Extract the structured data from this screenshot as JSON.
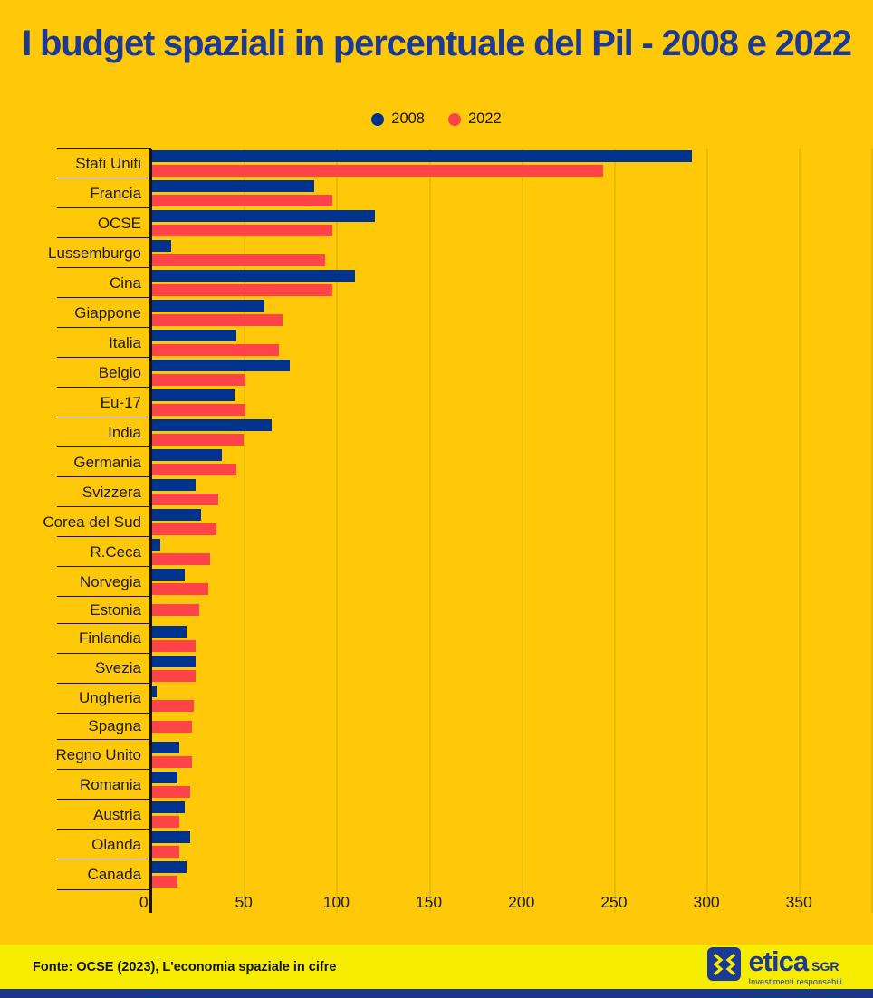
{
  "title": "I budget spaziali in percentuale del Pil - 2008 e 2022",
  "colors": {
    "background": "#FFC90A",
    "footer_background": "#F6EC00",
    "bottom_strip": "#1B3687",
    "title_text": "#1C3A94",
    "bar_2008": "#00338D",
    "bar_2022": "#FF4449",
    "gridline": "#E9BB00",
    "axis_text": "#1D1D1D"
  },
  "legend": {
    "items": [
      {
        "label": "2008",
        "color": "#00338D"
      },
      {
        "label": "2022",
        "color": "#FF4449"
      }
    ]
  },
  "chart_data": {
    "type": "bar",
    "orientation": "horizontal",
    "title": "I budget spaziali in percentuale del Pil - 2008 e 2022",
    "categories": [
      "Stati Uniti",
      "Francia",
      "OCSE",
      "Lussemburgo",
      "Cina",
      "Giappone",
      "Italia",
      "Belgio",
      "Eu-17",
      "India",
      "Germania",
      "Svizzera",
      "Corea del Sud",
      "R.Ceca",
      "Norvegia",
      "Estonia",
      "Finlandia",
      "Svezia",
      "Ungheria",
      "Spagna",
      "Regno Unito",
      "Romania",
      "Austria",
      "Olanda",
      "Canada"
    ],
    "series": [
      {
        "name": "2008",
        "color": "#00338D",
        "values": [
          292,
          88,
          121,
          11,
          110,
          61,
          46,
          75,
          45,
          65,
          38,
          24,
          27,
          5,
          18,
          0,
          19,
          24,
          3,
          0,
          15,
          14,
          18,
          21,
          19
        ]
      },
      {
        "name": "2022",
        "color": "#FF4449",
        "values": [
          244,
          98,
          98,
          94,
          98,
          71,
          69,
          51,
          51,
          50,
          46,
          36,
          35,
          32,
          31,
          26,
          24,
          24,
          23,
          22,
          22,
          21,
          15,
          15,
          14
        ]
      }
    ],
    "xticks": [
      0,
      50,
      100,
      150,
      200,
      250,
      300,
      350
    ],
    "xlim": [
      0,
      390
    ],
    "grid": "vertical",
    "legend_position": "top",
    "xlabel": "",
    "ylabel": ""
  },
  "footer": {
    "source": "Fonte: OCSE (2023), L'economia spaziale in cifre",
    "logo": {
      "brand": "etica",
      "brand_suffix": "SGR",
      "tagline": "Investimenti responsabili"
    }
  }
}
